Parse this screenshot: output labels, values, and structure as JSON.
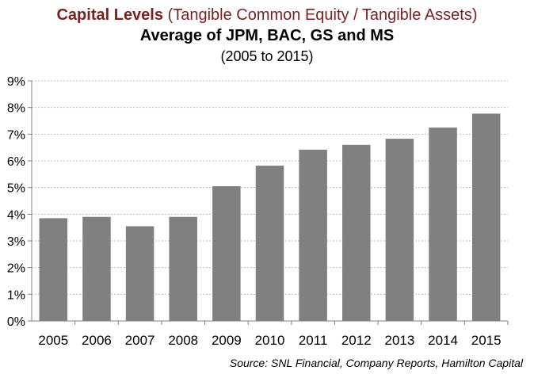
{
  "chart_data": {
    "type": "bar",
    "title_main": "Capital Levels",
    "title_paren": "(Tangible Common Equity / Tangible Assets)",
    "subtitle": "Average of JPM, BAC, GS and MS",
    "period": "(2005 to 2015)",
    "categories": [
      "2005",
      "2006",
      "2007",
      "2008",
      "2009",
      "2010",
      "2011",
      "2012",
      "2013",
      "2014",
      "2015"
    ],
    "values": [
      3.85,
      3.9,
      3.55,
      3.9,
      5.05,
      5.82,
      6.42,
      6.6,
      6.83,
      7.25,
      7.77
    ],
    "y_ticks": [
      "0%",
      "1%",
      "2%",
      "3%",
      "4%",
      "5%",
      "6%",
      "7%",
      "8%",
      "9%"
    ],
    "ylim": [
      0,
      9
    ],
    "grid": true,
    "bar_color": "#808080",
    "source": "Source: SNL Financial, Company Reports, Hamilton Capital"
  }
}
